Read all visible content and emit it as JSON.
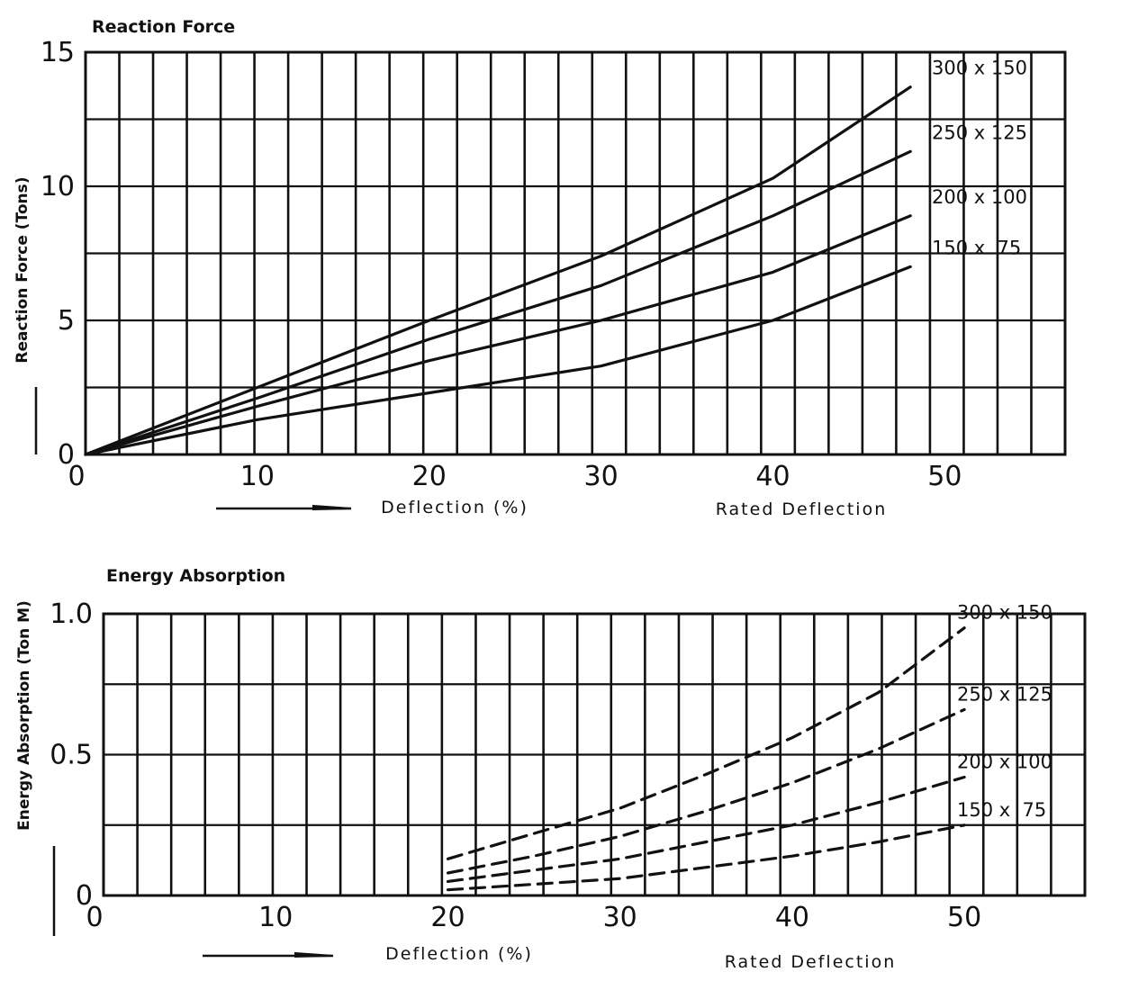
{
  "chart_data": [
    {
      "type": "line",
      "title": "Reaction Force",
      "xlabel": "Deflection (%)",
      "xlabel_note": "Rated Deflection",
      "ylabel": "Reaction Force (Tons)",
      "xlim": [
        0,
        57
      ],
      "ylim": [
        0,
        15
      ],
      "x_ticks": [
        "0",
        "10",
        "20",
        "30",
        "40",
        "50"
      ],
      "y_ticks": [
        "0",
        "5",
        "10",
        "15"
      ],
      "grid": true,
      "legend": "labels at right end of lines",
      "line_style": "solid",
      "series": [
        {
          "name": "300 x 150",
          "x": [
            0,
            10,
            20,
            30,
            40,
            48
          ],
          "y": [
            0,
            2.5,
            5.0,
            7.4,
            10.3,
            13.7
          ]
        },
        {
          "name": "250 x 125",
          "x": [
            0,
            10,
            20,
            30,
            40,
            48
          ],
          "y": [
            0,
            2.1,
            4.3,
            6.3,
            8.9,
            11.3
          ]
        },
        {
          "name": "200 x 100",
          "x": [
            0,
            10,
            20,
            30,
            40,
            48
          ],
          "y": [
            0,
            1.8,
            3.5,
            5.0,
            6.8,
            8.9
          ]
        },
        {
          "name": "150 x  75",
          "x": [
            0,
            10,
            20,
            30,
            40,
            48
          ],
          "y": [
            0,
            1.3,
            2.3,
            3.3,
            5.0,
            7.0
          ]
        }
      ]
    },
    {
      "type": "line",
      "title": "Energy Absorption",
      "xlabel": "Deflection (%)",
      "xlabel_note": "Rated Deflection",
      "ylabel": "Energy Absorption (Ton M)",
      "xlim": [
        0,
        57
      ],
      "ylim": [
        0,
        1.0
      ],
      "x_ticks": [
        "0",
        "10",
        "20",
        "30",
        "40",
        "50"
      ],
      "y_ticks": [
        "0",
        "0.5",
        "1.0"
      ],
      "grid": true,
      "legend": "labels at right end of lines",
      "line_style": "dashed",
      "series": [
        {
          "name": "300 x 150",
          "x": [
            20,
            25,
            30,
            35,
            40,
            45,
            50
          ],
          "y": [
            0.13,
            0.22,
            0.31,
            0.43,
            0.56,
            0.72,
            0.95
          ]
        },
        {
          "name": "250 x 125",
          "x": [
            20,
            25,
            30,
            35,
            40,
            45,
            50
          ],
          "y": [
            0.08,
            0.14,
            0.21,
            0.3,
            0.4,
            0.52,
            0.66
          ]
        },
        {
          "name": "200 x 100",
          "x": [
            20,
            25,
            30,
            35,
            40,
            45,
            50
          ],
          "y": [
            0.05,
            0.09,
            0.13,
            0.19,
            0.25,
            0.33,
            0.42
          ]
        },
        {
          "name": "150 x  75",
          "x": [
            20,
            25,
            30,
            35,
            40,
            45,
            50
          ],
          "y": [
            0.02,
            0.04,
            0.06,
            0.1,
            0.14,
            0.19,
            0.25
          ]
        }
      ]
    }
  ]
}
